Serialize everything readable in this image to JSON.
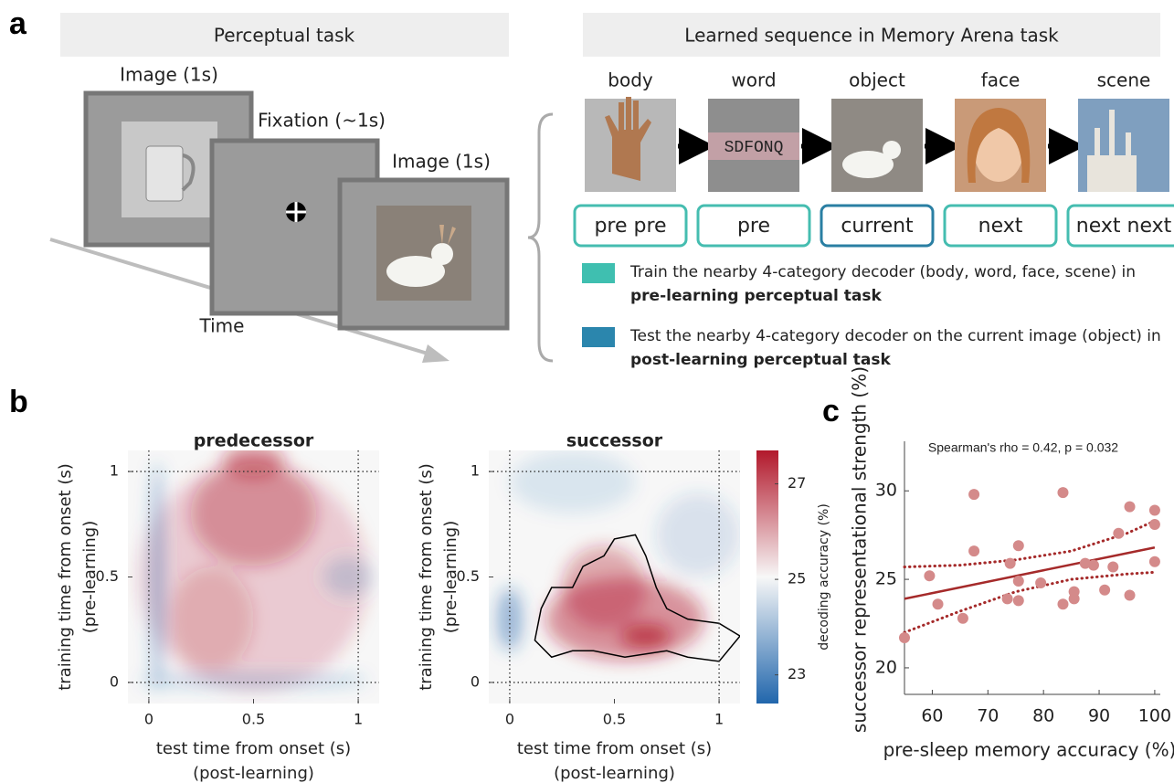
{
  "panel_labels": [
    "a",
    "b",
    "c"
  ],
  "perceptual_task": {
    "header": "Perceptual task",
    "frames": [
      "Image (1s)",
      "Fixation (~1s)",
      "Image (1s)"
    ],
    "time_label": "Time"
  },
  "memory_arena": {
    "header": "Learned sequence in Memory Arena task",
    "categories": [
      "body",
      "word",
      "object",
      "face",
      "scene"
    ],
    "word_stimulus": "SDFONQ",
    "positions": [
      {
        "label": "pre pre",
        "color": "#45bdb0"
      },
      {
        "label": "pre",
        "color": "#45bdb0"
      },
      {
        "label": "current",
        "color": "#2a7fa3"
      },
      {
        "label": "next",
        "color": "#45bdb0"
      },
      {
        "label": "next next",
        "color": "#45bdb0"
      }
    ],
    "legend": [
      {
        "text": "Train the nearby 4-category decoder (body, word, face, scene) in",
        "emphasis": "pre-learning perceptual task",
        "color": "#3fbfb0"
      },
      {
        "text": "Test the nearby 4-category decoder on the current image (object) in",
        "emphasis": "post-learning perceptual task",
        "color": "#2b86ad"
      }
    ]
  },
  "chart_data": [
    {
      "type": "heatmap",
      "title": "predecessor",
      "x_label": "test time from onset (s)",
      "x_label_2": "(post-learning)",
      "y_label": "training time from onset (s)",
      "y_label_2": "(pre-learning)",
      "xlim": [
        -0.1,
        1.1
      ],
      "ylim": [
        -0.1,
        1.1
      ],
      "xticks": [
        0,
        0.5,
        1
      ],
      "yticks": [
        0,
        0.5,
        1
      ],
      "onset_lines": [
        0,
        1
      ],
      "colormap": [
        "#2166ac",
        "#f7f7f7",
        "#b2182b"
      ]
    },
    {
      "type": "heatmap",
      "title": "successor",
      "x_label": "test time from onset (s)",
      "x_label_2": "(post-learning)",
      "y_label": "training time from onset (s)",
      "y_label_2": "(pre-learning)",
      "xlim": [
        -0.1,
        1.1
      ],
      "ylim": [
        -0.1,
        1.1
      ],
      "xticks": [
        0,
        0.5,
        1
      ],
      "yticks": [
        0,
        0.5,
        1
      ],
      "onset_lines": [
        0,
        1
      ],
      "colormap": [
        "#2166ac",
        "#f7f7f7",
        "#b2182b"
      ],
      "colorbar": {
        "label": "decoding accuracy (%)",
        "lim": [
          22.4,
          27.7
        ],
        "ticks": [
          23,
          25,
          27
        ]
      }
    },
    {
      "type": "scatter",
      "annotation": "Spearman's rho = 0.42, p = 0.032",
      "x_label": "pre-sleep memory accuracy (%)",
      "y_label": "successor representational strength (%)",
      "xlim": [
        55,
        101
      ],
      "ylim": [
        18.5,
        32.8
      ],
      "xticks": [
        60,
        70,
        80,
        90,
        100
      ],
      "yticks": [
        20,
        25,
        30
      ],
      "color": "#d48a8a",
      "x": [
        55,
        59.5,
        61,
        65.5,
        67.5,
        67.5,
        73.5,
        74,
        75.5,
        75.5,
        75.5,
        79.5,
        83.5,
        83.5,
        85.5,
        85.5,
        87.5,
        89,
        91,
        92.5,
        93.5,
        95.5,
        95.5,
        100,
        100,
        100
      ],
      "values": [
        21.7,
        25.2,
        23.6,
        22.8,
        29.8,
        26.6,
        23.9,
        25.9,
        26.9,
        24.9,
        23.8,
        24.8,
        29.9,
        23.6,
        24.3,
        23.9,
        25.9,
        25.8,
        24.4,
        25.7,
        27.6,
        24.1,
        29.1,
        28.9,
        28.1,
        26.0
      ],
      "fit": {
        "color": "#a52a2a",
        "x": [
          55,
          100
        ],
        "values": [
          23.9,
          26.8
        ]
      },
      "ci": {
        "x": [
          55,
          65,
          75,
          85,
          95,
          100
        ],
        "upper": [
          25.7,
          25.8,
          26.1,
          26.6,
          27.6,
          28.3
        ],
        "lower": [
          22.0,
          23.2,
          24.3,
          25.0,
          25.3,
          25.4
        ]
      }
    }
  ]
}
